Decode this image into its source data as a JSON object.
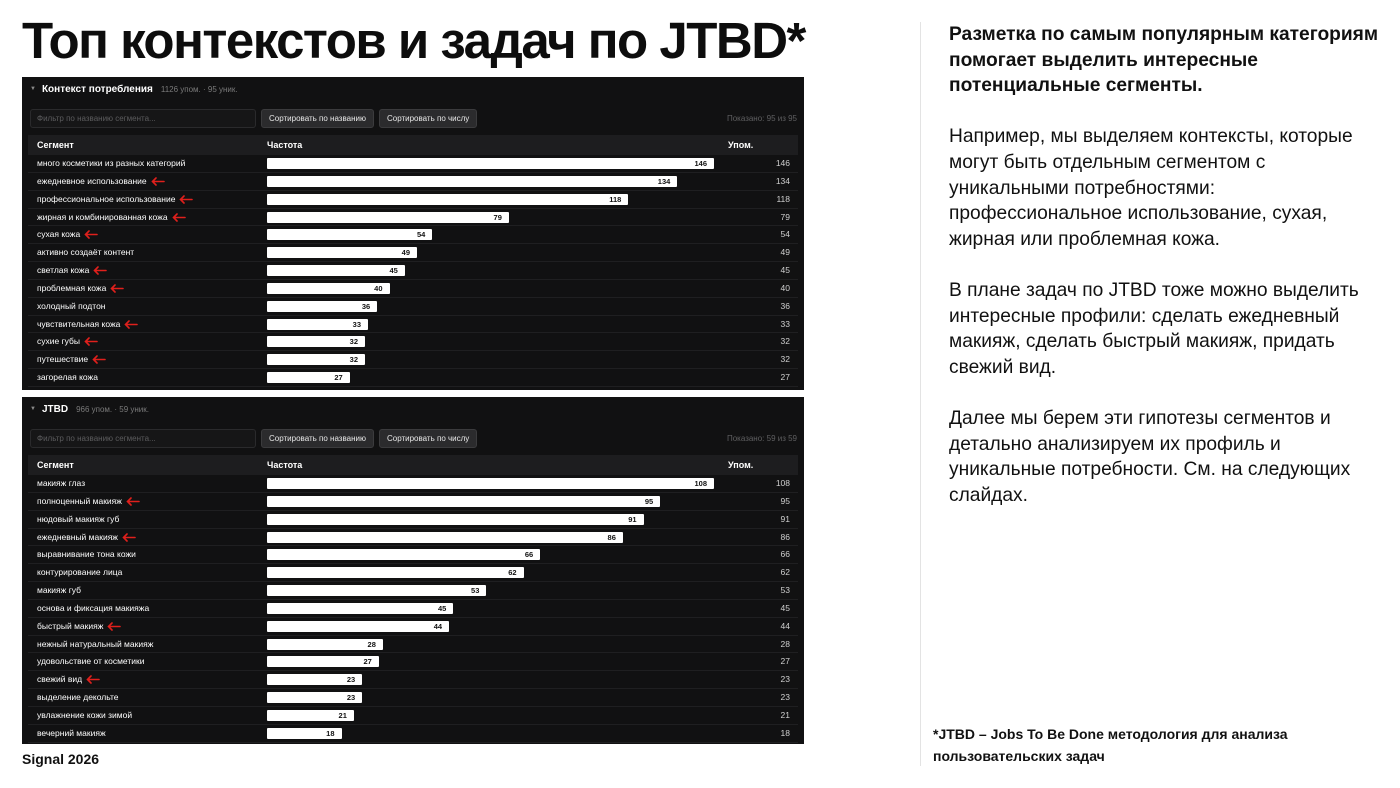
{
  "slide": {
    "title": "Топ контекстов и задач по JTBD*",
    "brand": "Signal 2026",
    "footnote": "*JTBD – Jobs To Be Done методология для анализа пользовательских задач",
    "paragraphs": [
      "Разметка по самым популярным категориям помогает выделить интересные потенциальные сегменты.",
      "Например, мы выделяем контексты, которые могут быть отдельным сегментом с уникальными потребностями: профессиональное использование, сухая, жирная или проблемная кожа.",
      "В плане задач по JTBD тоже можно выделить интересные профили: сделать ежедневный макияж, сделать быстрый макияж, придать свежий вид.",
      "Далее мы берем эти гипотезы сегментов и детально анализируем их профиль и уникальные потребности. См. на следующих слайдах."
    ]
  },
  "colors": {
    "panel_bg": "#111112",
    "bar": "#ffffff",
    "arrow": "#e0201c",
    "text_dark": "#111111"
  },
  "context_panel": {
    "title": "Контекст потребления",
    "meta": "1126 упом. · 95 уник.",
    "filter_placeholder": "Фильтр по названию сегмента...",
    "sort_name_label": "Сортировать по названию",
    "sort_count_label": "Сортировать по числу",
    "shown": "Показано: 95 из 95",
    "col_segment": "Сегмент",
    "col_frequency": "Частота",
    "col_mentions": "Упом.",
    "arrow_icon": "red-left-arrow-icon"
  },
  "jtbd_panel": {
    "title": "JTBD",
    "meta": "966 упом. · 59 уник.",
    "filter_placeholder": "Фильтр по названию сегмента...",
    "sort_name_label": "Сортировать по названию",
    "sort_count_label": "Сортировать по числу",
    "shown": "Показано: 59 из 59",
    "col_segment": "Сегмент",
    "col_frequency": "Частота",
    "col_mentions": "Упом.",
    "arrow_icon": "red-left-arrow-icon"
  },
  "chart_data": [
    {
      "type": "bar",
      "orientation": "horizontal",
      "title": "Контекст потребления",
      "xlim": [
        0,
        146
      ],
      "categories": [
        "много косметики из разных категорий",
        "ежедневное использование",
        "профессиональное использование",
        "жирная и комбинированная кожа",
        "сухая кожа",
        "активно создаёт контент",
        "светлая кожа",
        "проблемная кожа",
        "холодный подтон",
        "чувствительная кожа",
        "сухие губы",
        "путешествие",
        "загорелая кожа"
      ],
      "values": [
        146,
        134,
        118,
        79,
        54,
        49,
        45,
        40,
        36,
        33,
        32,
        32,
        27
      ],
      "highlighted": [
        false,
        true,
        true,
        true,
        true,
        false,
        true,
        true,
        false,
        true,
        true,
        true,
        false
      ]
    },
    {
      "type": "bar",
      "orientation": "horizontal",
      "title": "JTBD",
      "xlim": [
        0,
        108
      ],
      "categories": [
        "макияж глаз",
        "полноценный макияж",
        "нюдовый макияж губ",
        "ежедневный макияж",
        "выравнивание тона кожи",
        "контурирование лица",
        "макияж губ",
        "основа и фиксация макияжа",
        "быстрый макияж",
        "нежный натуральный макияж",
        "удовольствие от косметики",
        "свежий вид",
        "выделение декольте",
        "увлажнение кожи зимой",
        "вечерний макияж"
      ],
      "values": [
        108,
        95,
        91,
        86,
        66,
        62,
        53,
        45,
        44,
        28,
        27,
        23,
        23,
        21,
        18
      ],
      "highlighted": [
        false,
        true,
        false,
        true,
        false,
        false,
        false,
        false,
        true,
        false,
        false,
        true,
        false,
        false,
        false
      ]
    }
  ]
}
